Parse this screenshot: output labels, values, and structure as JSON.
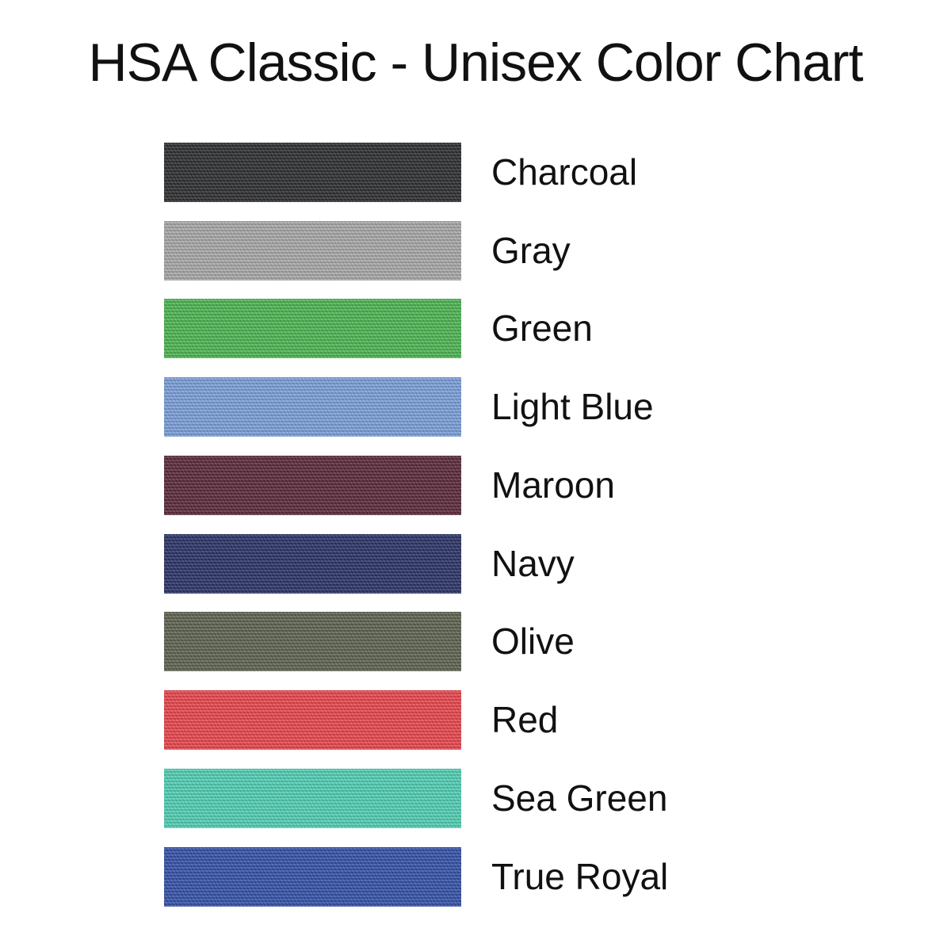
{
  "title": "HSA Classic - Unisex Color Chart",
  "colors": [
    {
      "name": "Charcoal",
      "hex": "#2e2f31"
    },
    {
      "name": "Gray",
      "hex": "#a8a8a8"
    },
    {
      "name": "Green",
      "hex": "#4db553"
    },
    {
      "name": "Light Blue",
      "hex": "#7b9fd9"
    },
    {
      "name": "Maroon",
      "hex": "#5b2b3b"
    },
    {
      "name": "Navy",
      "hex": "#2b3467"
    },
    {
      "name": "Olive",
      "hex": "#5f6351"
    },
    {
      "name": "Red",
      "hex": "#e8474d"
    },
    {
      "name": "Sea Green",
      "hex": "#52cfb4"
    },
    {
      "name": "True Royal",
      "hex": "#3552a8"
    }
  ]
}
